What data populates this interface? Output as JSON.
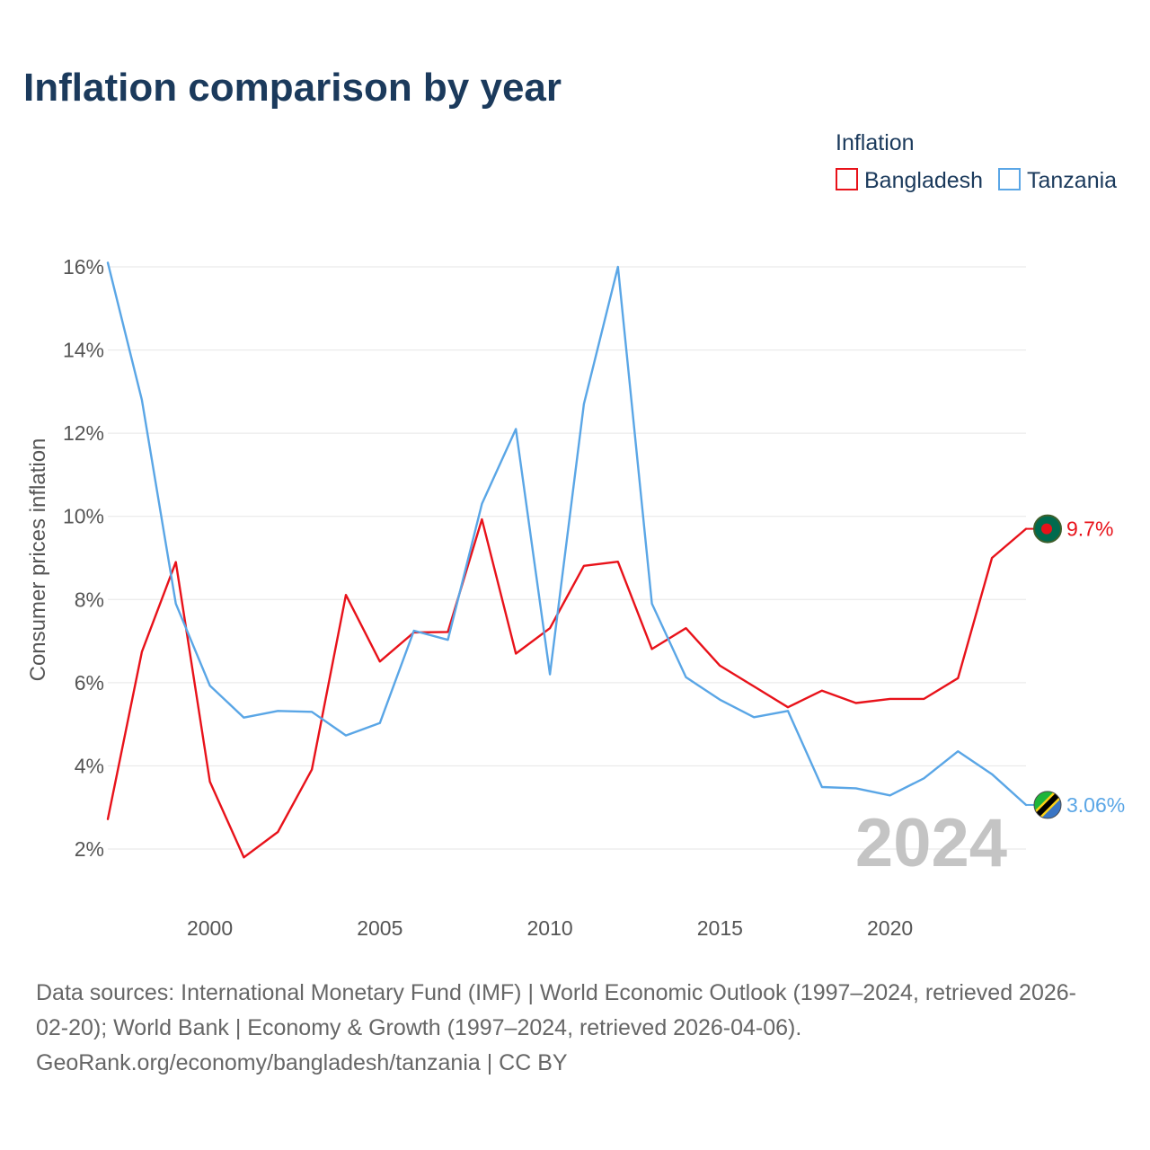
{
  "chart_data": {
    "type": "line",
    "title": "Inflation comparison by year",
    "legend_title": "Inflation",
    "legend_position": "top-right",
    "ylabel": "Consumer prices inflation",
    "xlabel": "",
    "x": [
      1997,
      1998,
      1999,
      2000,
      2001,
      2002,
      2003,
      2004,
      2005,
      2006,
      2007,
      2008,
      2009,
      2010,
      2011,
      2012,
      2013,
      2014,
      2015,
      2016,
      2017,
      2018,
      2019,
      2020,
      2021,
      2022,
      2023,
      2024
    ],
    "xlim": [
      1997,
      2024
    ],
    "ylim": [
      1,
      16.2
    ],
    "x_ticks": [
      2000,
      2005,
      2010,
      2015,
      2020
    ],
    "x_tick_labels": [
      "2000",
      "2005",
      "2010",
      "2015",
      "2020"
    ],
    "y_ticks": [
      2,
      4,
      6,
      8,
      10,
      12,
      14,
      16
    ],
    "y_tick_labels": [
      "2%",
      "4%",
      "6%",
      "8%",
      "10%",
      "12%",
      "14%",
      "16%"
    ],
    "grid": true,
    "highlight_year": "2024",
    "series": [
      {
        "name": "Bangladesh",
        "color": "#e8121a",
        "values": [
          2.72,
          6.74,
          8.9,
          3.62,
          1.8,
          2.41,
          3.91,
          8.11,
          6.51,
          7.21,
          7.22,
          9.93,
          6.7,
          7.31,
          8.81,
          8.91,
          6.81,
          7.31,
          6.41,
          5.91,
          5.41,
          5.81,
          5.51,
          5.61,
          5.61,
          6.11,
          9.0,
          9.7
        ],
        "end_label": "9.7%",
        "flag_icon": "bangladesh-flag-icon"
      },
      {
        "name": "Tanzania",
        "color": "#5aa6e6",
        "values": [
          16.1,
          12.8,
          7.9,
          5.93,
          5.16,
          5.32,
          5.3,
          4.73,
          5.03,
          7.25,
          7.03,
          10.3,
          12.1,
          6.2,
          12.7,
          16.0,
          7.9,
          6.13,
          5.59,
          5.17,
          5.32,
          3.49,
          3.46,
          3.29,
          3.7,
          4.35,
          3.8,
          3.06
        ],
        "end_label": "3.06%",
        "flag_icon": "tanzania-flag-icon"
      }
    ]
  },
  "source": {
    "line1": "Data sources: International Monetary Fund (IMF) | World Economic Outlook (1997–2024, retrieved 2026-",
    "line2": "02-20); World Bank | Economy & Growth (1997–2024, retrieved 2026-04-06).",
    "line3": "GeoRank.org/economy/bangladesh/tanzania | CC BY"
  }
}
